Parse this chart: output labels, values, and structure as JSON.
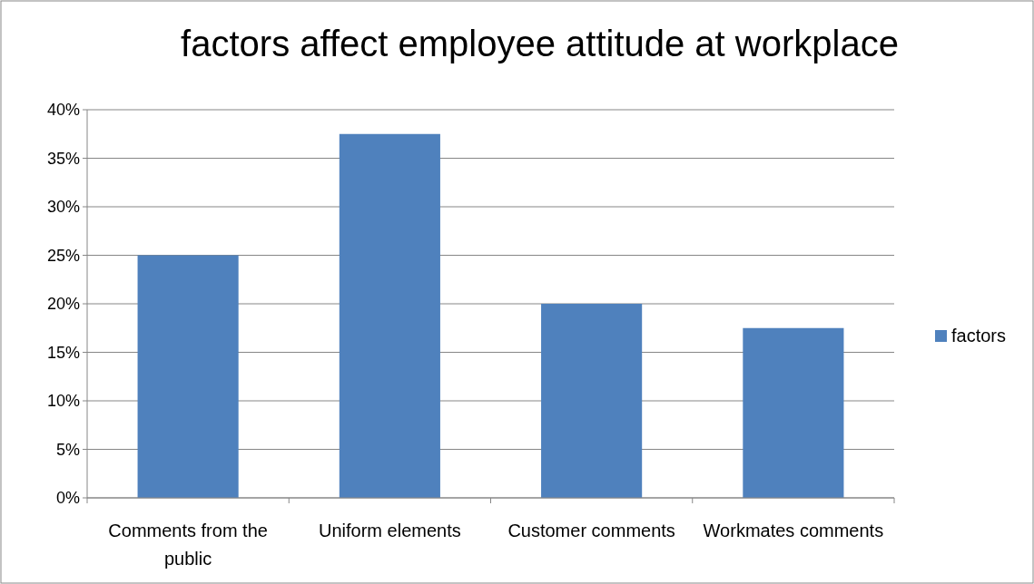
{
  "chart_data": {
    "type": "bar",
    "title": "factors affect employee attitude at workplace",
    "categories": [
      "Comments from the public",
      "Uniform elements",
      "Customer comments",
      "Workmates comments"
    ],
    "series": [
      {
        "name": "factors",
        "color": "#4f81bd",
        "values": [
          25,
          37.5,
          20,
          17.5
        ]
      }
    ],
    "ylim": [
      0,
      40
    ],
    "yticks": [
      {
        "value": 0,
        "label": "0%"
      },
      {
        "value": 5,
        "label": "5%"
      },
      {
        "value": 10,
        "label": "10%"
      },
      {
        "value": 15,
        "label": "15%"
      },
      {
        "value": 20,
        "label": "20%"
      },
      {
        "value": 25,
        "label": "25%"
      },
      {
        "value": 30,
        "label": "30%"
      },
      {
        "value": 35,
        "label": "35%"
      },
      {
        "value": 40,
        "label": "40%"
      }
    ],
    "grid": "y",
    "legend": "right"
  }
}
